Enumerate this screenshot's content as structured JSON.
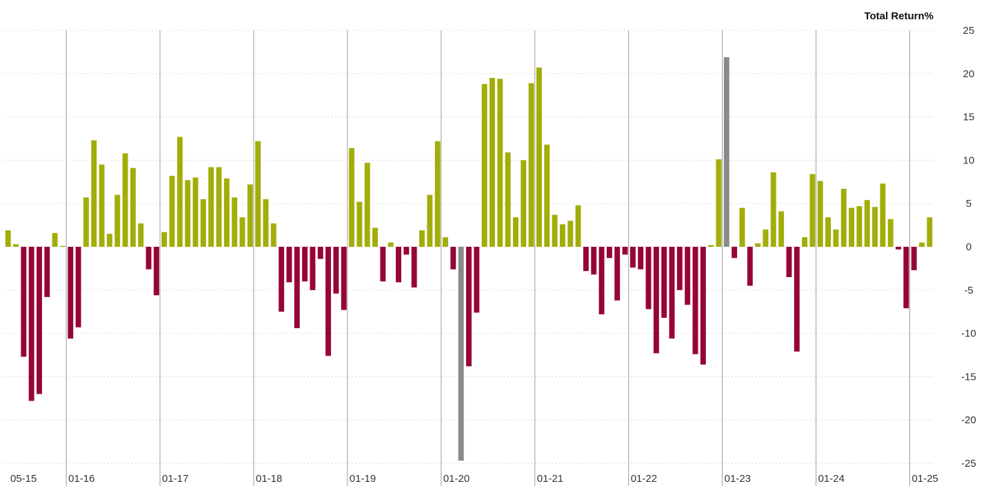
{
  "chart_data": {
    "type": "bar",
    "ylabel": "Total Return%",
    "ylim": [
      -25,
      25
    ],
    "y_ticks": [
      "25",
      "20",
      "15",
      "10",
      "5",
      "0",
      "-5",
      "-10",
      "-15",
      "-20",
      "-25"
    ],
    "x_tick_labels": [
      "05-15",
      "01-16",
      "01-17",
      "01-18",
      "01-19",
      "01-20",
      "01-21",
      "01-22",
      "01-23",
      "01-24",
      "01-25"
    ],
    "start_month": "2015-05",
    "colors": {
      "positive": "#a3ad0a",
      "negative": "#960535",
      "highlight": "#8a8a8a",
      "grid": "#bbbbbb",
      "separator": "#9a9a9a"
    },
    "grid": "dotted horizontal",
    "highlight_months": [
      "2020-03",
      "2023-01"
    ],
    "values": [
      1.9,
      0.3,
      -12.7,
      -17.8,
      -17.0,
      -5.8,
      1.6,
      0.1,
      -10.6,
      -9.3,
      5.7,
      12.3,
      9.5,
      1.5,
      6.0,
      10.8,
      9.1,
      2.7,
      -2.6,
      -5.6,
      1.7,
      8.2,
      12.7,
      7.7,
      8.0,
      5.5,
      9.2,
      9.2,
      7.9,
      5.7,
      3.4,
      7.2,
      12.2,
      5.5,
      2.7,
      -7.5,
      -4.1,
      -9.4,
      -4.0,
      -5.0,
      -1.4,
      -12.6,
      -5.4,
      -7.3,
      11.4,
      5.2,
      9.7,
      2.2,
      -4.0,
      0.5,
      -4.1,
      -0.9,
      -4.7,
      1.9,
      6.0,
      12.2,
      1.1,
      -2.6,
      -24.7,
      -13.8,
      -7.6,
      18.8,
      19.5,
      19.4,
      10.9,
      3.4,
      10.0,
      18.9,
      20.7,
      11.8,
      3.7,
      2.6,
      3.0,
      4.8,
      -2.8,
      -3.2,
      -7.8,
      -1.3,
      -6.2,
      -0.9,
      -2.4,
      -2.6,
      -7.2,
      -12.3,
      -8.2,
      -10.6,
      -5.0,
      -6.7,
      -12.4,
      -13.6,
      0.2,
      10.1,
      21.9,
      -1.3,
      4.5,
      -4.5,
      0.4,
      2.0,
      8.6,
      4.1,
      -3.5,
      -12.1,
      1.1,
      8.4,
      7.6,
      3.4,
      2.0,
      6.7,
      4.5,
      4.7,
      5.4,
      4.6,
      7.3,
      3.2,
      -0.3,
      -7.1,
      -2.7,
      0.5,
      3.4
    ]
  }
}
